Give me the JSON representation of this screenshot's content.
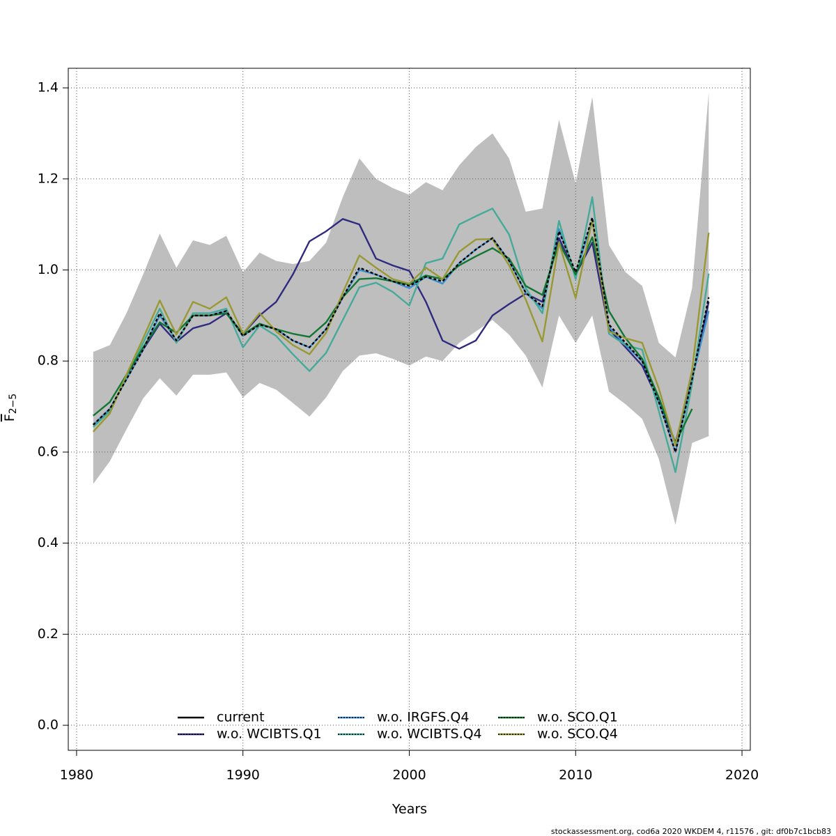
{
  "chart_data": {
    "type": "line",
    "xlabel": "Years",
    "ylabel": "F",
    "ylabel_subscript": "2−5",
    "footer": "stockassessment.org, cod6a 2020 WKDEM 4, r11576 , git: df0b7c1bcb83",
    "x": [
      1981,
      1982,
      1983,
      1984,
      1985,
      1986,
      1987,
      1988,
      1989,
      1990,
      1991,
      1992,
      1993,
      1994,
      1995,
      1996,
      1997,
      1998,
      1999,
      2000,
      2001,
      2002,
      2003,
      2004,
      2005,
      2006,
      2007,
      2008,
      2009,
      2010,
      2011,
      2012,
      2013,
      2014,
      2015,
      2016,
      2017,
      2018
    ],
    "band": {
      "color": "#bebebe",
      "upper": [
        0.82,
        0.835,
        0.905,
        0.99,
        1.08,
        1.005,
        1.065,
        1.055,
        1.075,
        0.995,
        1.038,
        1.02,
        1.013,
        1.02,
        1.06,
        1.16,
        1.245,
        1.2,
        1.18,
        1.165,
        1.193,
        1.175,
        1.23,
        1.27,
        1.3,
        1.245,
        1.128,
        1.135,
        1.33,
        1.19,
        1.38,
        1.055,
        0.995,
        0.965,
        0.84,
        0.808,
        0.96,
        1.39
      ],
      "lower": [
        0.53,
        0.58,
        0.65,
        0.718,
        0.762,
        0.724,
        0.77,
        0.77,
        0.775,
        0.72,
        0.752,
        0.737,
        0.708,
        0.678,
        0.72,
        0.778,
        0.812,
        0.817,
        0.805,
        0.79,
        0.81,
        0.8,
        0.84,
        0.865,
        0.89,
        0.858,
        0.812,
        0.742,
        0.9,
        0.84,
        0.9,
        0.733,
        0.705,
        0.673,
        0.585,
        0.44,
        0.62,
        0.635
      ]
    },
    "series": [
      {
        "name": "current",
        "color": "#000000",
        "dashed": true,
        "values": [
          0.66,
          0.695,
          0.76,
          0.825,
          0.905,
          0.845,
          0.9,
          0.9,
          0.91,
          0.855,
          0.88,
          0.87,
          0.845,
          0.83,
          0.87,
          0.94,
          1.005,
          0.99,
          0.975,
          0.965,
          0.985,
          0.975,
          1.015,
          1.045,
          1.07,
          1.02,
          0.95,
          0.92,
          1.085,
          0.995,
          1.115,
          0.88,
          0.84,
          0.8,
          0.71,
          0.6,
          0.76,
          0.94
        ]
      },
      {
        "name": "w.o. WCIBTS.Q1",
        "color": "#2f2a7f",
        "values": [
          0.66,
          0.69,
          0.765,
          0.825,
          0.882,
          0.842,
          0.872,
          0.882,
          0.905,
          0.86,
          0.9,
          0.93,
          0.99,
          1.063,
          1.085,
          1.112,
          1.1,
          1.025,
          1.01,
          0.998,
          0.93,
          0.845,
          0.827,
          0.845,
          0.9,
          0.925,
          0.948,
          0.93,
          1.07,
          0.99,
          1.06,
          0.87,
          0.83,
          0.79,
          0.71,
          0.62,
          0.76,
          0.93
        ]
      },
      {
        "name": "w.o. IRGFS.Q4",
        "color": "#3a8fd0",
        "values": [
          0.66,
          0.695,
          0.76,
          0.825,
          0.9,
          0.845,
          0.9,
          0.9,
          0.91,
          0.855,
          0.88,
          0.87,
          0.845,
          0.83,
          0.87,
          0.94,
          1.0,
          0.99,
          0.975,
          0.96,
          0.985,
          0.97,
          1.015,
          1.045,
          1.07,
          1.02,
          0.95,
          0.915,
          1.09,
          0.99,
          1.11,
          0.875,
          0.835,
          0.8,
          0.71,
          0.6,
          0.76,
          0.91
        ]
      },
      {
        "name": "w.o. WCIBTS.Q4",
        "color": "#44aa99",
        "values": [
          0.655,
          0.69,
          0.765,
          0.84,
          0.915,
          0.84,
          0.905,
          0.905,
          0.915,
          0.83,
          0.878,
          0.855,
          0.815,
          0.778,
          0.818,
          0.89,
          0.962,
          0.972,
          0.952,
          0.922,
          1.015,
          1.025,
          1.1,
          1.118,
          1.135,
          1.078,
          0.96,
          0.905,
          1.108,
          0.98,
          1.16,
          0.86,
          0.835,
          0.825,
          0.69,
          0.556,
          0.75,
          0.992
        ]
      },
      {
        "name": "w.o. SCO.Q1",
        "color": "#117733",
        "values": [
          0.68,
          0.71,
          0.77,
          0.83,
          0.885,
          0.862,
          0.9,
          0.9,
          0.905,
          0.858,
          0.882,
          0.87,
          0.86,
          0.853,
          0.885,
          0.94,
          0.98,
          0.982,
          0.975,
          0.968,
          0.988,
          0.98,
          1.01,
          1.03,
          1.048,
          1.025,
          0.965,
          0.945,
          1.06,
          0.99,
          1.072,
          0.91,
          0.85,
          0.805,
          0.72,
          0.62,
          0.695,
          null
        ]
      },
      {
        "name": "w.o. SCO.Q4",
        "color": "#999933",
        "values": [
          0.645,
          0.685,
          0.77,
          0.85,
          0.933,
          0.858,
          0.93,
          0.915,
          0.94,
          0.86,
          0.905,
          0.865,
          0.835,
          0.815,
          0.862,
          0.95,
          1.032,
          1.005,
          0.98,
          0.97,
          1.005,
          0.98,
          1.04,
          1.067,
          1.068,
          1.01,
          0.935,
          0.843,
          1.06,
          0.938,
          1.11,
          0.865,
          0.85,
          0.84,
          0.74,
          0.615,
          0.78,
          1.082
        ]
      }
    ],
    "xlim": [
      1979.5,
      2020.5
    ],
    "ylim": [
      -0.055,
      1.443
    ],
    "xticks": [
      1980,
      1990,
      2000,
      2010,
      2020
    ],
    "yticks": [
      {
        "value": 0,
        "label": "0.0"
      },
      0.2,
      0.4,
      0.6,
      0.8,
      {
        "value": 1,
        "label": "1.0"
      },
      1.2,
      1.4
    ],
    "grid": true,
    "legend": "bottom"
  }
}
